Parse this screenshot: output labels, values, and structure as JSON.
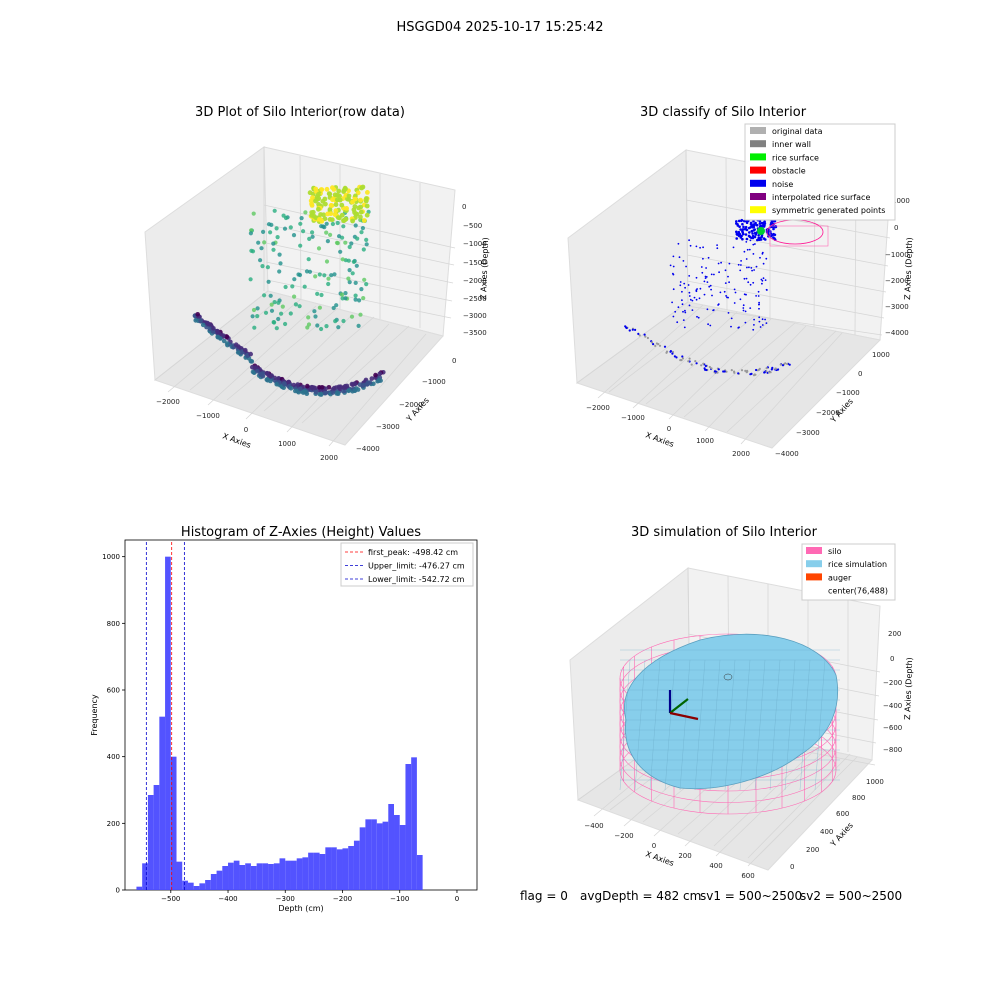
{
  "figure": {
    "suptitle": "HSGGD04 2025-10-17 15:25:42",
    "panels": {
      "raw": {
        "title": "3D Plot of Silo Interior(row data)",
        "xlabel": "X Axies",
        "ylabel": "Y Axies",
        "zlabel": "Z Axies (Depth)",
        "xticks": [
          "−2000",
          "−1000",
          "0",
          "1000",
          "2000"
        ],
        "yticks": [
          "0",
          "−1000",
          "−2000",
          "−3000",
          "−4000"
        ],
        "zticks": [
          "0",
          "−500",
          "−1000",
          "−1500",
          "−2000",
          "−2500",
          "−3000",
          "−3500"
        ]
      },
      "classify": {
        "title": "3D classify of Silo Interior",
        "xlabel": "X Axies",
        "ylabel": "Y Axies",
        "zlabel": "Z Axies (Depth)",
        "xticks": [
          "−2000",
          "−1000",
          "0",
          "1000",
          "2000"
        ],
        "yticks": [
          "1000",
          "0",
          "−1000",
          "−2000",
          "−3000",
          "−4000"
        ],
        "zticks": [
          "1000",
          "0",
          "−1000",
          "−2000",
          "−3000",
          "−4000"
        ],
        "legend": [
          {
            "label": "original data",
            "color": "#b0b0b0"
          },
          {
            "label": "inner wall",
            "color": "#808080"
          },
          {
            "label": "rice surface",
            "color": "#00ee00"
          },
          {
            "label": "obstacle",
            "color": "#ff0000"
          },
          {
            "label": "noise",
            "color": "#0000ee"
          },
          {
            "label": "interpolated rice surface",
            "color": "#800080"
          },
          {
            "label": "symmetric generated points",
            "color": "#ffff00"
          }
        ]
      },
      "simulation": {
        "title": "3D simulation of Silo Interior",
        "xlabel": "X Axies",
        "ylabel": "Y Axies",
        "zlabel": "Z Axies (Depth)",
        "xticks": [
          "−400",
          "−200",
          "0",
          "200",
          "400",
          "600"
        ],
        "yticks": [
          "0",
          "200",
          "400",
          "600",
          "800",
          "1000"
        ],
        "zticks": [
          "200",
          "0",
          "−200",
          "−400",
          "−600",
          "−800"
        ],
        "legend": [
          {
            "label": "silo",
            "color": "#ff69b4"
          },
          {
            "label": "rice simulation",
            "color": "#87ceeb"
          },
          {
            "label": "auger",
            "color": "#ff4500"
          },
          {
            "label": "center(76,488)",
            "color": ""
          }
        ]
      }
    },
    "status": {
      "flag": "flag = 0",
      "avg": "avgDepth = 482 cm",
      "sv1": "sv1 = 500~2500",
      "sv2": "sv2 = 500~2500"
    }
  },
  "chart_data": [
    {
      "type": "scatter",
      "title": "3D Plot of Silo Interior(row data)",
      "xlabel": "X Axies",
      "ylabel": "Y Axies",
      "zlabel": "Z Axies (Depth)",
      "xlim": [
        -2300,
        2300
      ],
      "ylim": [
        -4300,
        300
      ],
      "zlim": [
        -3800,
        200
      ]
    },
    {
      "type": "scatter",
      "title": "3D classify of Silo Interior",
      "xlabel": "X Axies",
      "ylabel": "Y Axies",
      "zlabel": "Z Axies (Depth)",
      "series": [
        {
          "name": "original data"
        },
        {
          "name": "inner wall"
        },
        {
          "name": "rice surface"
        },
        {
          "name": "obstacle"
        },
        {
          "name": "noise"
        },
        {
          "name": "interpolated rice surface"
        },
        {
          "name": "symmetric generated points"
        }
      ]
    },
    {
      "type": "bar",
      "title": "Histogram of Z-Axies (Height) Values",
      "xlabel": "Depth (cm)",
      "ylabel": "Frequency",
      "xlim": [
        -580,
        35
      ],
      "ylim": [
        0,
        1050
      ],
      "xticks": [
        -500,
        -400,
        -300,
        -200,
        -100,
        0
      ],
      "yticks": [
        0,
        200,
        400,
        600,
        800,
        1000
      ],
      "bin_start": -560,
      "bin_width": 10,
      "bins": [
        [
          -560,
          10
        ],
        [
          -550,
          80
        ],
        [
          -540,
          285
        ],
        [
          -530,
          315
        ],
        [
          -520,
          520
        ],
        [
          -510,
          1000
        ],
        [
          -500,
          400
        ],
        [
          -490,
          85
        ],
        [
          -480,
          28
        ],
        [
          -470,
          22
        ],
        [
          -460,
          12
        ],
        [
          -450,
          20
        ],
        [
          -440,
          30
        ],
        [
          -430,
          48
        ],
        [
          -420,
          58
        ],
        [
          -410,
          72
        ],
        [
          -400,
          82
        ],
        [
          -390,
          88
        ],
        [
          -380,
          75
        ],
        [
          -370,
          80
        ],
        [
          -360,
          72
        ],
        [
          -350,
          80
        ],
        [
          -340,
          80
        ],
        [
          -330,
          78
        ],
        [
          -320,
          80
        ],
        [
          -310,
          95
        ],
        [
          -300,
          88
        ],
        [
          -290,
          88
        ],
        [
          -280,
          95
        ],
        [
          -270,
          98
        ],
        [
          -260,
          112
        ],
        [
          -250,
          112
        ],
        [
          -240,
          108
        ],
        [
          -230,
          128
        ],
        [
          -220,
          128
        ],
        [
          -210,
          122
        ],
        [
          -200,
          125
        ],
        [
          -190,
          132
        ],
        [
          -180,
          148
        ],
        [
          -170,
          188
        ],
        [
          -160,
          212
        ],
        [
          -150,
          212
        ],
        [
          -140,
          200
        ],
        [
          -130,
          205
        ],
        [
          -120,
          258
        ],
        [
          -110,
          225
        ],
        [
          -100,
          195
        ],
        [
          -90,
          378
        ],
        [
          -80,
          398
        ],
        [
          -70,
          105
        ]
      ],
      "bin_offset": -47,
      "vlines": [
        {
          "label": "first_peak: -498.42 cm",
          "value": -498.42,
          "color": "#ff0000"
        },
        {
          "label": "Upper_limit: -476.27 cm",
          "value": -476.27,
          "color": "#0000cc"
        },
        {
          "label": "Lower_limit: -542.72 cm",
          "value": -542.72,
          "color": "#0000cc"
        }
      ],
      "bar_color": "#4a4aff"
    },
    {
      "type": "scatter",
      "title": "3D simulation of Silo Interior",
      "xlabel": "X Axies",
      "ylabel": "Y Axies",
      "zlabel": "Z Axies (Depth)",
      "series": [
        {
          "name": "silo"
        },
        {
          "name": "rice simulation"
        },
        {
          "name": "auger"
        },
        {
          "name": "center(76,488)"
        }
      ]
    }
  ]
}
